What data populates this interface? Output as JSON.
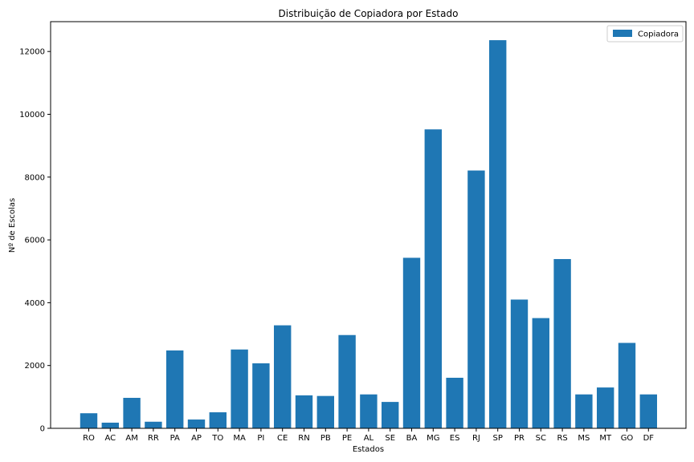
{
  "chart_data": {
    "type": "bar",
    "title": "Distribuição de Copiadora por Estado",
    "xlabel": "Estados",
    "ylabel": "Nº de Escolas",
    "categories": [
      "RO",
      "AC",
      "AM",
      "RR",
      "PA",
      "AP",
      "TO",
      "MA",
      "PI",
      "CE",
      "RN",
      "PB",
      "PE",
      "AL",
      "SE",
      "BA",
      "MG",
      "ES",
      "RJ",
      "SP",
      "PR",
      "SC",
      "RS",
      "MS",
      "MT",
      "GO",
      "DF"
    ],
    "series": [
      {
        "name": "Copiadora",
        "color": "#1f77b4",
        "values": [
          480,
          180,
          970,
          210,
          2480,
          280,
          510,
          2510,
          2070,
          3280,
          1050,
          1030,
          2970,
          1080,
          840,
          5430,
          9520,
          1610,
          8210,
          12360,
          4100,
          3510,
          5390,
          1080,
          1300,
          2720,
          1080
        ]
      }
    ],
    "ylim": [
      0,
      12950
    ],
    "yticks": [
      0,
      2000,
      4000,
      6000,
      8000,
      10000,
      12000
    ],
    "grid": false,
    "legend_position": "top-right"
  }
}
